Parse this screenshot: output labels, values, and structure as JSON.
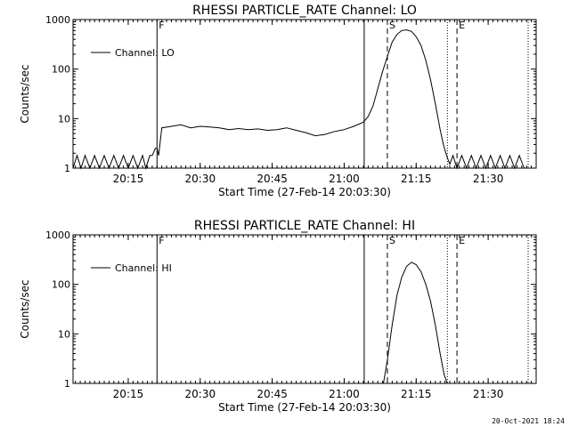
{
  "footer": {
    "timestamp": "20-Oct-2021 18:24"
  },
  "chart_data": [
    {
      "type": "line",
      "title": "RHESSI PARTICLE_RATE Channel: LO",
      "xlabel": "Start Time (27-Feb-14 20:03:30)",
      "ylabel": "Counts/sec",
      "yscale": "log",
      "ylim": [
        1,
        1000
      ],
      "xlim": [
        "20:03:30",
        "21:40:00"
      ],
      "x_ticks": [
        "20:15",
        "20:30",
        "20:45",
        "21:00",
        "21:15",
        "21:30"
      ],
      "y_ticks": [
        "1",
        "10",
        "100",
        "1000"
      ],
      "legend": {
        "label": "Channel: LO",
        "position": "top-left"
      },
      "markers": [
        {
          "label": "F",
          "time": "20:21:00",
          "style": "solid"
        },
        {
          "label": "",
          "time": "21:04:10",
          "style": "solid"
        },
        {
          "label": "S",
          "time": "21:09:00",
          "style": "dashed"
        },
        {
          "label": "E",
          "time": "21:23:30",
          "style": "dashed"
        },
        {
          "label": "",
          "time": "21:21:30",
          "style": "dotted"
        },
        {
          "label": "",
          "time": "21:38:20",
          "style": "dotted"
        }
      ],
      "series": [
        {
          "name": "Channel: LO",
          "x": [
            "20:03:30",
            "20:04:20",
            "20:05:10",
            "20:06:00",
            "20:07:00",
            "20:08:00",
            "20:09:00",
            "20:10:00",
            "20:11:00",
            "20:12:00",
            "20:13:00",
            "20:14:00",
            "20:15:00",
            "20:16:00",
            "20:17:00",
            "20:18:00",
            "20:18:40",
            "20:19:30",
            "20:20:00",
            "20:20:40",
            "20:21:00",
            "20:21:20",
            "20:22:00",
            "20:24:00",
            "20:26:00",
            "20:28:00",
            "20:30:00",
            "20:32:00",
            "20:34:00",
            "20:36:00",
            "20:38:00",
            "20:40:00",
            "20:42:00",
            "20:44:00",
            "20:46:00",
            "20:48:00",
            "20:50:00",
            "20:52:00",
            "20:54:00",
            "20:56:00",
            "20:58:00",
            "21:00:00",
            "21:02:00",
            "21:04:00",
            "21:05:00",
            "21:06:00",
            "21:07:00",
            "21:08:00",
            "21:09:00",
            "21:10:00",
            "21:11:00",
            "21:12:00",
            "21:13:00",
            "21:14:00",
            "21:15:00",
            "21:16:00",
            "21:17:00",
            "21:18:00",
            "21:19:00",
            "21:20:00",
            "21:20:40",
            "21:21:20",
            "21:22:00",
            "21:22:40",
            "21:23:30",
            "21:24:30",
            "21:25:30",
            "21:26:30",
            "21:27:30",
            "21:28:30",
            "21:29:30",
            "21:30:30",
            "21:31:30",
            "21:32:30",
            "21:33:30",
            "21:34:30",
            "21:35:30",
            "21:36:30",
            "21:37:30"
          ],
          "values": [
            1,
            1.8,
            1,
            1.8,
            1,
            1.8,
            1,
            1.8,
            1,
            1.8,
            1,
            1.8,
            1,
            1.8,
            1,
            1.8,
            1,
            1.8,
            1.8,
            2.5,
            2.5,
            1.8,
            6.5,
            7,
            7.5,
            6.5,
            7,
            6.8,
            6.5,
            6,
            6.3,
            6,
            6.2,
            5.8,
            6,
            6.5,
            5.8,
            5.2,
            4.5,
            4.8,
            5.5,
            6,
            7,
            8.5,
            11,
            18,
            40,
            90,
            180,
            350,
            500,
            600,
            620,
            580,
            450,
            300,
            150,
            60,
            20,
            6,
            3,
            1.8,
            1.2,
            1.8,
            1,
            1.8,
            1,
            1.8,
            1,
            1.8,
            1,
            1.8,
            1,
            1.8,
            1,
            1.8,
            1,
            1.8,
            1
          ]
        }
      ]
    },
    {
      "type": "line",
      "title": "RHESSI PARTICLE_RATE Channel: HI",
      "xlabel": "Start Time (27-Feb-14 20:03:30)",
      "ylabel": "Counts/sec",
      "yscale": "log",
      "ylim": [
        1,
        1000
      ],
      "xlim": [
        "20:03:30",
        "21:40:00"
      ],
      "x_ticks": [
        "20:15",
        "20:30",
        "20:45",
        "21:00",
        "21:15",
        "21:30"
      ],
      "y_ticks": [
        "1",
        "10",
        "100",
        "1000"
      ],
      "legend": {
        "label": "Channel: HI",
        "position": "top-left"
      },
      "markers": [
        {
          "label": "F",
          "time": "20:21:00",
          "style": "solid"
        },
        {
          "label": "",
          "time": "21:04:10",
          "style": "solid"
        },
        {
          "label": "S",
          "time": "21:09:00",
          "style": "dashed"
        },
        {
          "label": "E",
          "time": "21:23:30",
          "style": "dashed"
        },
        {
          "label": "",
          "time": "21:21:30",
          "style": "dotted"
        },
        {
          "label": "",
          "time": "21:38:20",
          "style": "dotted"
        }
      ],
      "series": [
        {
          "name": "Channel: HI",
          "x": [
            "21:08:10",
            "21:09:00",
            "21:10:00",
            "21:11:00",
            "21:12:00",
            "21:13:00",
            "21:14:00",
            "21:15:00",
            "21:16:00",
            "21:17:00",
            "21:18:00",
            "21:19:00",
            "21:20:00",
            "21:20:50",
            "21:21:30"
          ],
          "values": [
            1,
            3,
            15,
            60,
            140,
            230,
            280,
            250,
            180,
            100,
            45,
            15,
            4,
            1.5,
            1
          ]
        }
      ]
    }
  ]
}
